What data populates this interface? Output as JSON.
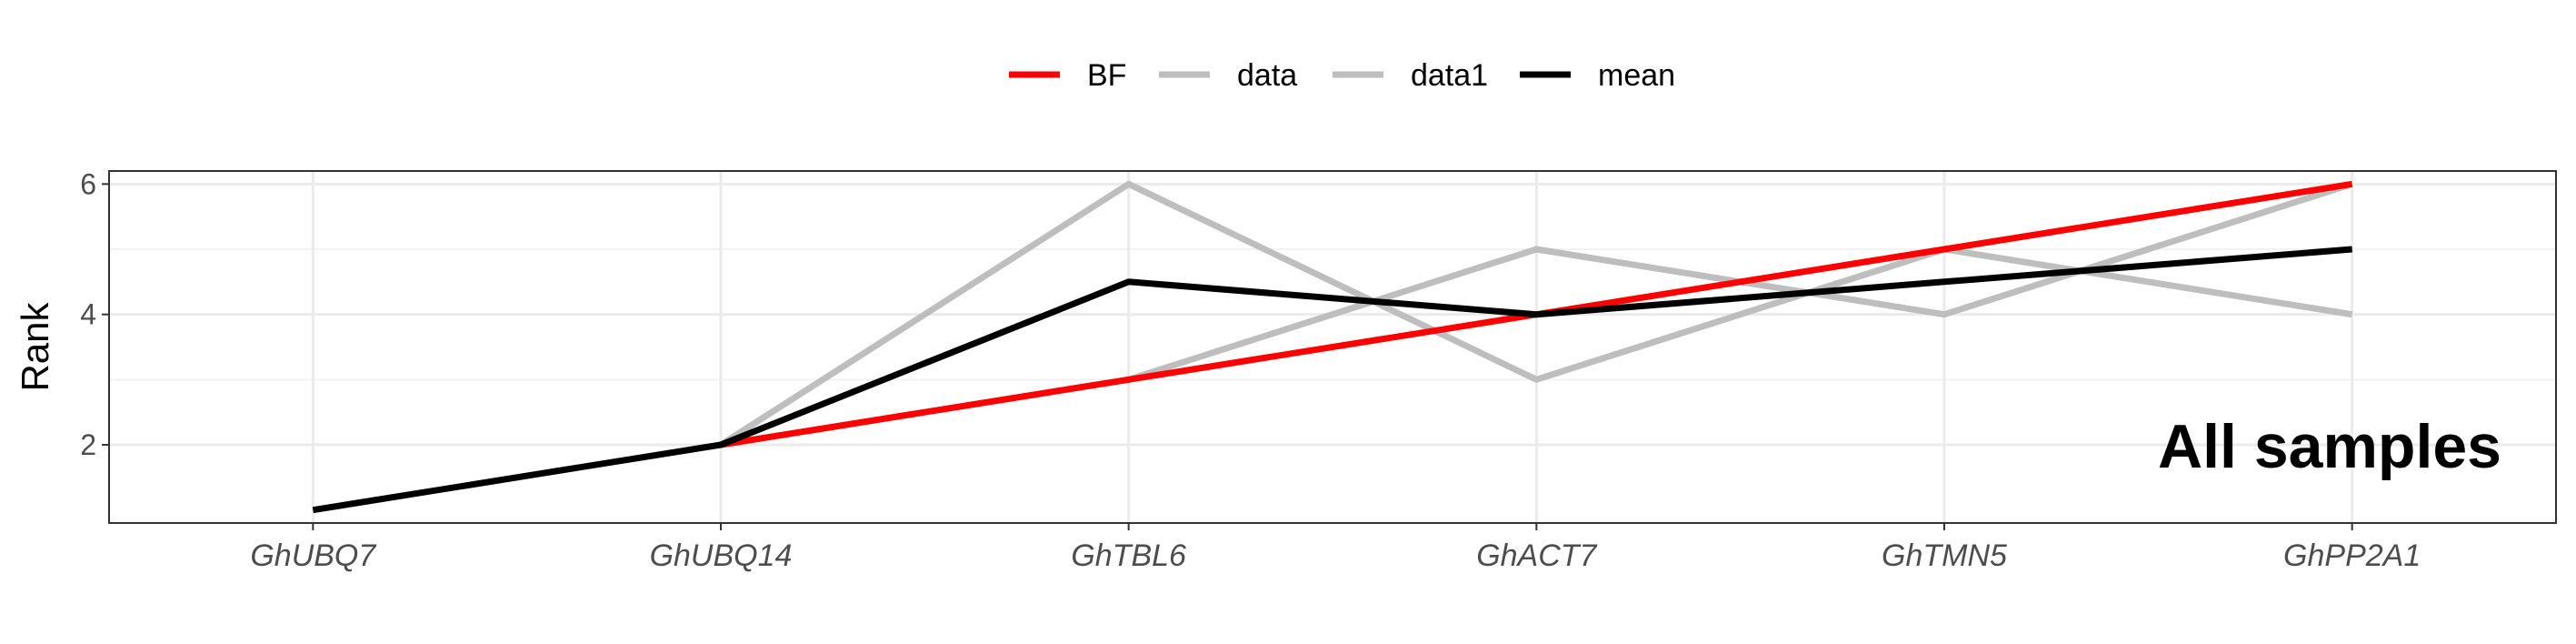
{
  "chart_data": {
    "type": "line",
    "title": "",
    "xlabel": "",
    "ylabel": "Rank",
    "categories": [
      "GhUBQ7",
      "GhUBQ14",
      "GhTBL6",
      "GhACT7",
      "GhTMN5",
      "GhPP2A1"
    ],
    "ylim": [
      0.8,
      6.2
    ],
    "yticks": [
      2,
      4,
      6
    ],
    "grid": true,
    "legend_position": "top",
    "annotation": "All samples",
    "series": [
      {
        "name": "data",
        "color": "#bebebe",
        "values": [
          null,
          2,
          6,
          3,
          5,
          4
        ]
      },
      {
        "name": "data1",
        "color": "#bebebe",
        "values": [
          null,
          2,
          3,
          5,
          4,
          6
        ]
      },
      {
        "name": "BF",
        "color": "#ff0000",
        "values": [
          null,
          2,
          3,
          4,
          5,
          6
        ]
      },
      {
        "name": "mean",
        "color": "#000000",
        "values": [
          1,
          2,
          4.5,
          4,
          4.5,
          5
        ]
      }
    ],
    "legend_order": [
      "BF",
      "data",
      "data1",
      "mean"
    ]
  }
}
